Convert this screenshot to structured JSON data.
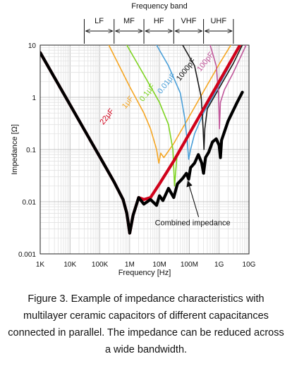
{
  "chart_data": {
    "type": "line",
    "x_scale": "log",
    "y_scale": "log",
    "xlabel": "Frequency [Hz]",
    "ylabel": "Impedance [Ω]",
    "xlim": [
      1000,
      10000000000
    ],
    "ylim": [
      0.001,
      10
    ],
    "x_ticks": [
      {
        "value": 1000,
        "label": "1K"
      },
      {
        "value": 10000,
        "label": "10K"
      },
      {
        "value": 100000,
        "label": "100K"
      },
      {
        "value": 1000000,
        "label": "1M"
      },
      {
        "value": 10000000,
        "label": "10M"
      },
      {
        "value": 100000000,
        "label": "100M"
      },
      {
        "value": 1000000000,
        "label": "1G"
      },
      {
        "value": 10000000000,
        "label": "10G"
      }
    ],
    "y_ticks": [
      {
        "value": 0.001,
        "label": "0.001"
      },
      {
        "value": 0.01,
        "label": "0.01"
      },
      {
        "value": 0.1,
        "label": "0.1"
      },
      {
        "value": 1,
        "label": "1"
      },
      {
        "value": 10,
        "label": "10"
      }
    ],
    "grid": true,
    "frequency_bands": {
      "title": "Frequency band",
      "bands": [
        {
          "label": "LF",
          "from": 30000,
          "to": 300000
        },
        {
          "label": "MF",
          "from": 300000,
          "to": 3000000
        },
        {
          "label": "HF",
          "from": 3000000,
          "to": 30000000
        },
        {
          "label": "VHF",
          "from": 30000000,
          "to": 300000000
        },
        {
          "label": "UHF",
          "from": 300000000,
          "to": 3000000000
        }
      ]
    },
    "series": [
      {
        "name": "22μF",
        "color": "#d0021b",
        "label_at": {
          "x": 200000,
          "y": 0.4
        },
        "points": [
          [
            1000,
            7.2
          ],
          [
            10000,
            0.72
          ],
          [
            100000,
            0.072
          ],
          [
            300000,
            0.024
          ],
          [
            600000,
            0.011
          ],
          [
            800000,
            0.006
          ],
          [
            1000000,
            0.0025
          ],
          [
            1300000,
            0.0055
          ],
          [
            2000000,
            0.012
          ],
          [
            3000000,
            0.011
          ],
          [
            5000000,
            0.012
          ],
          [
            10000000,
            0.022
          ],
          [
            30000000,
            0.06
          ],
          [
            100000000,
            0.2
          ],
          [
            300000000,
            0.6
          ],
          [
            1000000000,
            2
          ],
          [
            3000000000,
            6
          ],
          [
            6000000000,
            12
          ]
        ]
      },
      {
        "name": "1μF",
        "color": "#f5a623",
        "label_at": {
          "x": 1000000,
          "y": 0.75
        },
        "points": [
          [
            200000,
            10
          ],
          [
            1000000,
            1.6
          ],
          [
            3000000,
            0.5
          ],
          [
            5000000,
            0.25
          ],
          [
            8000000,
            0.1
          ],
          [
            9500000,
            0.055
          ],
          [
            11000000,
            0.085
          ],
          [
            14000000,
            0.07
          ],
          [
            30000000,
            0.13
          ],
          [
            100000000,
            0.43
          ],
          [
            300000000,
            1.3
          ],
          [
            1000000000,
            4.3
          ],
          [
            3000000000,
            12
          ]
        ]
      },
      {
        "name": "0.1μF",
        "color": "#7ed321",
        "label_at": {
          "x": 4500000,
          "y": 1.15
        },
        "points": [
          [
            800000,
            10
          ],
          [
            3000000,
            2.7
          ],
          [
            10000000,
            0.8
          ],
          [
            20000000,
            0.3
          ],
          [
            28000000,
            0.1
          ],
          [
            32000000,
            0.02
          ],
          [
            38000000,
            0.07
          ],
          [
            60000000,
            0.12
          ],
          [
            100000000,
            0.2
          ],
          [
            300000000,
            0.6
          ],
          [
            1000000000,
            2
          ],
          [
            3000000000,
            6
          ],
          [
            5500000000,
            12
          ]
        ]
      },
      {
        "name": "0.01μF",
        "color": "#4a9fd8",
        "label_at": {
          "x": 20000000,
          "y": 1.75
        },
        "points": [
          [
            8000000,
            10
          ],
          [
            20000000,
            4
          ],
          [
            50000000,
            1.2
          ],
          [
            70000000,
            0.4
          ],
          [
            85000000,
            0.15
          ],
          [
            95000000,
            0.065
          ],
          [
            110000000,
            0.1
          ],
          [
            150000000,
            0.2
          ],
          [
            300000000,
            0.5
          ],
          [
            1000000000,
            1.7
          ],
          [
            3000000000,
            5.5
          ],
          [
            6000000000,
            12
          ]
        ]
      },
      {
        "name": "1000pF",
        "color": "#1a1a1a",
        "label_at": {
          "x": 90000000,
          "y": 3.2
        },
        "points": [
          [
            60000000,
            10
          ],
          [
            150000000,
            4
          ],
          [
            250000000,
            1
          ],
          [
            290000000,
            0.25
          ],
          [
            310000000,
            0.1
          ],
          [
            330000000,
            0.25
          ],
          [
            400000000,
            0.6
          ],
          [
            1000000000,
            1.5
          ],
          [
            3000000000,
            4.5
          ],
          [
            7000000000,
            12
          ]
        ]
      },
      {
        "name": "100pF",
        "color": "#c0579a",
        "label_at": {
          "x": 400000000,
          "y": 4.5
        },
        "points": [
          [
            500000000,
            10
          ],
          [
            800000000,
            4
          ],
          [
            950000000,
            1.2
          ],
          [
            1020000000,
            0.25
          ],
          [
            1100000000,
            0.8
          ],
          [
            1500000000,
            1.4
          ],
          [
            3000000000,
            3
          ],
          [
            6000000000,
            7
          ],
          [
            8000000000,
            10
          ]
        ]
      },
      {
        "name": "Combined impedance",
        "color": "#000000",
        "points": [
          [
            1000,
            7.2
          ],
          [
            10000,
            0.72
          ],
          [
            100000,
            0.072
          ],
          [
            300000,
            0.024
          ],
          [
            600000,
            0.011
          ],
          [
            800000,
            0.006
          ],
          [
            1000000,
            0.0025
          ],
          [
            1300000,
            0.0055
          ],
          [
            2000000,
            0.012
          ],
          [
            3000000,
            0.009
          ],
          [
            5000000,
            0.011
          ],
          [
            8000000,
            0.0085
          ],
          [
            10000000,
            0.013
          ],
          [
            13000000,
            0.0105
          ],
          [
            20000000,
            0.018
          ],
          [
            30000000,
            0.012
          ],
          [
            40000000,
            0.022
          ],
          [
            60000000,
            0.028
          ],
          [
            80000000,
            0.035
          ],
          [
            95000000,
            0.027
          ],
          [
            110000000,
            0.045
          ],
          [
            150000000,
            0.055
          ],
          [
            200000000,
            0.08
          ],
          [
            260000000,
            0.055
          ],
          [
            300000000,
            0.035
          ],
          [
            350000000,
            0.07
          ],
          [
            450000000,
            0.09
          ],
          [
            600000000,
            0.14
          ],
          [
            800000000,
            0.16
          ],
          [
            1000000000,
            0.12
          ],
          [
            1100000000,
            0.07
          ],
          [
            1200000000,
            0.15
          ],
          [
            2000000000,
            0.35
          ],
          [
            4000000000,
            0.8
          ],
          [
            6000000000,
            1.25
          ]
        ]
      }
    ],
    "annotation": {
      "text": "Combined impedance",
      "arrow_to": {
        "x": 80000000,
        "y": 0.03
      },
      "text_at": {
        "x": 7000000,
        "y": 0.0035
      }
    }
  },
  "caption": [
    "Figure 3. Example of impedance characteristics with",
    "multilayer ceramic capacitors of different capacitances",
    "connected in parallel. The impedance can be reduced across",
    "a wide bandwidth."
  ]
}
